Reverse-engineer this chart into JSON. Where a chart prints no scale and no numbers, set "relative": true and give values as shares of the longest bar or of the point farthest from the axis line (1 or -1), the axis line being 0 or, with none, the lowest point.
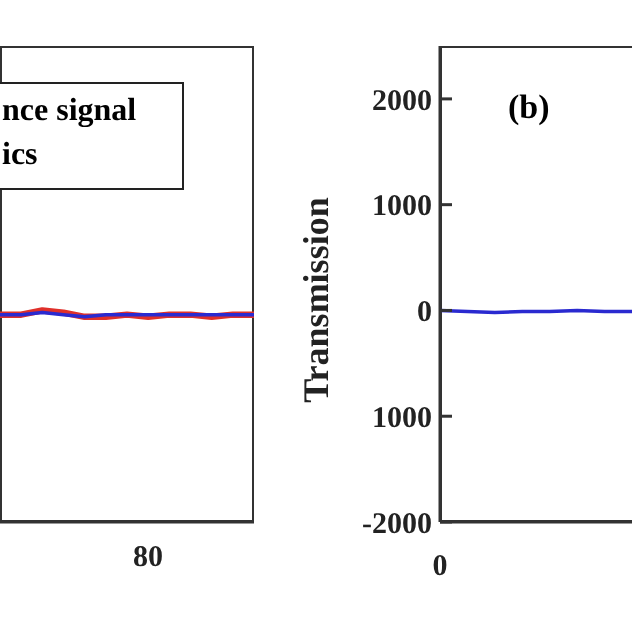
{
  "chart_data": [
    {
      "type": "line",
      "annotations": [
        "nce signal",
        "ics",
        "80"
      ],
      "categories": [
        null,
        null,
        null,
        null,
        null,
        null,
        null,
        null,
        null,
        null,
        null,
        null,
        null
      ],
      "relative": true,
      "legend": false,
      "series": [
        {
          "color": "#e0302a",
          "values": [
            0.98,
            0.98,
            1,
            0.99,
            0.97,
            0.97,
            0.98,
            0.97,
            0.98,
            0.98,
            0.97,
            0.98,
            0.98
          ]
        },
        {
          "color": "#2a2ad0",
          "values": [
            0.98,
            0.98,
            0.99,
            0.98,
            0.97,
            0.98,
            0.98,
            0.98,
            0.98,
            0.98,
            0.98,
            0.98,
            0.98
          ]
        }
      ]
    },
    {
      "type": "line",
      "annotations": [
        "(b)"
      ],
      "ylabel": "Transmission",
      "categories": [
        "0",
        null,
        null,
        null,
        null,
        null,
        null,
        null
      ],
      "ylim": [
        -2000,
        2500
      ],
      "yticks": [
        2000,
        1000,
        0,
        {
          "value": -1000,
          "label": "1000"
        },
        -2000
      ],
      "legend": false,
      "series": [
        {
          "color": "#2a2ad0",
          "values": [
            0,
            -10,
            -20,
            -10,
            -10,
            0,
            -10,
            -10
          ]
        }
      ]
    }
  ]
}
